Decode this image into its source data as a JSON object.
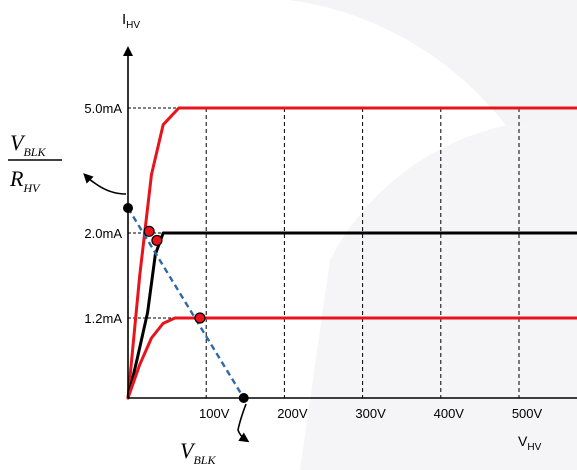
{
  "chart_data": {
    "type": "line",
    "ylabel": {
      "main": "I",
      "sub": "HV"
    },
    "xlabel": {
      "main": "V",
      "sub": "HV"
    },
    "x_unit": "V",
    "y_unit": "mA",
    "xlim": [
      0,
      580
    ],
    "x_ticks": [
      {
        "value": 100,
        "label": "100V"
      },
      {
        "value": 200,
        "label": "200V"
      },
      {
        "value": 300,
        "label": "300V"
      },
      {
        "value": 400,
        "label": "400V"
      },
      {
        "value": 500,
        "label": "500V"
      }
    ],
    "y_ticks": [
      {
        "value": 5.0,
        "label": "5.0mA"
      },
      {
        "value": 2.0,
        "label": "2.0mA"
      },
      {
        "value": 1.2,
        "label": "1.2mA"
      }
    ],
    "series": [
      {
        "color": "#e8141b",
        "level": 5.0,
        "knee": 65,
        "curve": [
          [
            0,
            0
          ],
          [
            15,
            1.6
          ],
          [
            30,
            3.4
          ],
          [
            45,
            4.6
          ],
          [
            65,
            5.0
          ],
          [
            580,
            5.0
          ]
        ]
      },
      {
        "color": "#000000",
        "level": 2.0,
        "knee": 45,
        "curve": [
          [
            0,
            0
          ],
          [
            12,
            0.6
          ],
          [
            25,
            1.25
          ],
          [
            35,
            1.8
          ],
          [
            45,
            2.0
          ],
          [
            580,
            2.0
          ]
        ]
      },
      {
        "color": "#e8141b",
        "level": 1.2,
        "knee": 60,
        "curve": [
          [
            0,
            0
          ],
          [
            15,
            0.5
          ],
          [
            30,
            0.9
          ],
          [
            45,
            1.12
          ],
          [
            60,
            1.2
          ],
          [
            580,
            1.2
          ]
        ]
      }
    ],
    "load_line": {
      "color": "#2e6aa8",
      "x_intercept": 148,
      "y_intercept": 2.6
    },
    "intersections": [
      {
        "x": 27,
        "y": 2.04,
        "color": "#e8141b"
      },
      {
        "x": 37,
        "y": 1.93,
        "color": "#e8141b"
      },
      {
        "x": 92,
        "y": 1.2,
        "color": "#e8141b"
      }
    ],
    "annotations": {
      "y_intercept_label": {
        "numerator": {
          "main": "V",
          "sub": "BLK"
        },
        "denominator": {
          "main": "R",
          "sub": "HV"
        }
      },
      "x_intercept_label": {
        "main": "V",
        "sub": "BLK"
      }
    },
    "grid": "dashed-vertical",
    "colors": {
      "red": "#e8141b",
      "black": "#000000",
      "blue_dashed": "#2e6aa8",
      "grid": "#000000"
    }
  }
}
